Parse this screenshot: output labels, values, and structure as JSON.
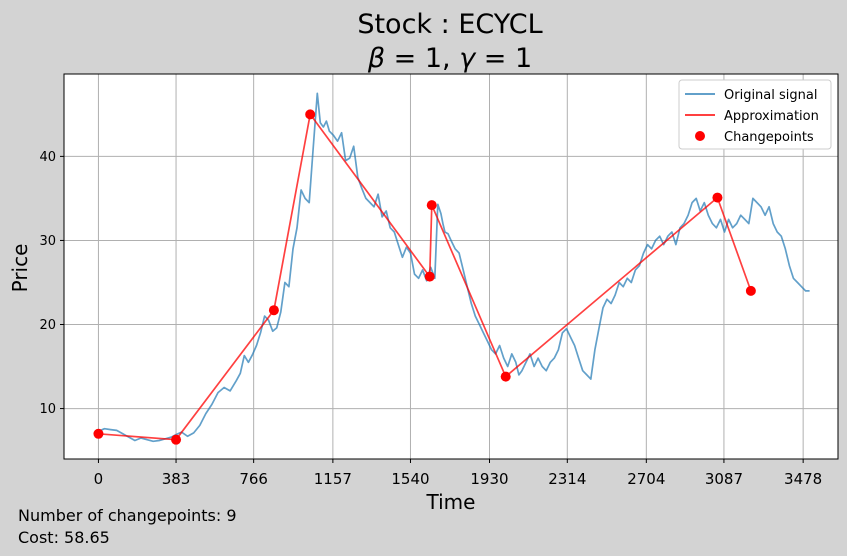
{
  "chart_data": {
    "type": "line",
    "title": "Stock : ECYCL",
    "subtitle_parts": {
      "beta_symbol": "β",
      "beta_rest": " = 1, ",
      "gamma_symbol": "γ",
      "gamma_rest": " = 1"
    },
    "xlabel": "Time",
    "ylabel": "Price",
    "xlim": [
      -170,
      3650
    ],
    "ylim": [
      4,
      49.8
    ],
    "x_ticks": [
      0,
      383,
      766,
      1157,
      1540,
      1930,
      2314,
      2704,
      3087,
      3478
    ],
    "y_ticks": [
      10,
      20,
      30,
      40
    ],
    "grid": true,
    "legend_position": "top-right",
    "series": [
      {
        "name": "Original signal",
        "kind": "line",
        "color": "#1f77b4",
        "x": [
          0,
          30,
          60,
          90,
          120,
          150,
          180,
          210,
          240,
          270,
          300,
          330,
          360,
          383,
          410,
          440,
          470,
          500,
          530,
          560,
          590,
          620,
          650,
          680,
          700,
          720,
          740,
          760,
          780,
          800,
          820,
          840,
          860,
          880,
          900,
          920,
          940,
          960,
          980,
          1000,
          1020,
          1040,
          1060,
          1080,
          1095,
          1110,
          1125,
          1140,
          1160,
          1180,
          1200,
          1220,
          1240,
          1260,
          1280,
          1300,
          1320,
          1340,
          1360,
          1380,
          1400,
          1420,
          1440,
          1460,
          1480,
          1500,
          1520,
          1540,
          1560,
          1580,
          1600,
          1620,
          1640,
          1660,
          1675,
          1690,
          1700,
          1710,
          1725,
          1740,
          1760,
          1780,
          1800,
          1820,
          1840,
          1860,
          1880,
          1900,
          1920,
          1940,
          1960,
          1980,
          2000,
          2020,
          2040,
          2060,
          2075,
          2090,
          2110,
          2130,
          2150,
          2170,
          2190,
          2210,
          2230,
          2250,
          2270,
          2290,
          2310,
          2330,
          2350,
          2370,
          2390,
          2410,
          2430,
          2450,
          2470,
          2490,
          2510,
          2530,
          2550,
          2570,
          2590,
          2610,
          2630,
          2650,
          2670,
          2690,
          2710,
          2730,
          2750,
          2770,
          2790,
          2810,
          2830,
          2850,
          2870,
          2890,
          2910,
          2930,
          2950,
          2970,
          2990,
          3010,
          3030,
          3050,
          3070,
          3090,
          3110,
          3130,
          3150,
          3170,
          3190,
          3210,
          3230,
          3250,
          3270,
          3290,
          3310,
          3330,
          3350,
          3370,
          3390,
          3410,
          3430,
          3450,
          3470,
          3490,
          3510
        ],
        "y": [
          7.3,
          7.6,
          7.5,
          7.4,
          7.0,
          6.6,
          6.2,
          6.5,
          6.3,
          6.1,
          6.2,
          6.4,
          6.6,
          6.9,
          7.2,
          6.7,
          7.1,
          8.0,
          9.4,
          10.5,
          11.9,
          12.5,
          12.1,
          13.3,
          14.2,
          16.3,
          15.5,
          16.4,
          17.5,
          19.0,
          21.0,
          20.5,
          19.2,
          19.6,
          21.5,
          25.0,
          24.5,
          29.0,
          31.5,
          36.0,
          35.0,
          34.5,
          41.0,
          47.5,
          44.0,
          43.5,
          44.2,
          43.0,
          42.5,
          41.8,
          42.8,
          39.5,
          39.8,
          41.2,
          37.5,
          36.2,
          35.0,
          34.5,
          34.0,
          35.5,
          32.8,
          33.5,
          31.5,
          31.0,
          29.5,
          28.0,
          29.2,
          28.5,
          26.0,
          25.5,
          26.5,
          25.2,
          26.8,
          25.5,
          34.3,
          33.2,
          32.0,
          31.0,
          30.8,
          30.0,
          29.0,
          28.5,
          26.5,
          24.5,
          22.5,
          21.0,
          20.0,
          19.0,
          18.0,
          17.0,
          16.5,
          17.5,
          16.0,
          15.0,
          16.5,
          15.5,
          14.0,
          14.5,
          15.5,
          16.5,
          15.0,
          16.0,
          15.0,
          14.5,
          15.5,
          16.0,
          17.0,
          19.0,
          19.5,
          18.5,
          17.5,
          16.0,
          14.5,
          14.0,
          13.5,
          17.0,
          19.5,
          22.0,
          23.0,
          22.5,
          23.5,
          25.0,
          24.5,
          25.5,
          25.0,
          26.5,
          27.0,
          28.5,
          29.5,
          29.0,
          30.0,
          30.5,
          29.5,
          30.5,
          31.0,
          29.5,
          31.5,
          32.0,
          33.0,
          34.5,
          35.0,
          33.5,
          34.5,
          33.0,
          32.0,
          31.5,
          32.5,
          31.0,
          32.5,
          31.5,
          32.0,
          33.0,
          32.5,
          32.0,
          35.0,
          34.5,
          34.0,
          33.0,
          34.0,
          32.0,
          31.0,
          30.5,
          29.0,
          27.0,
          25.5,
          25.0,
          24.5,
          24.0,
          24.0
        ]
      },
      {
        "name": "Approximation",
        "kind": "line",
        "color": "#ff0000",
        "x": [
          0,
          383,
          866,
          1045,
          1635,
          1645,
          2010,
          3055,
          3220
        ],
        "y": [
          7.0,
          6.3,
          21.7,
          45.0,
          25.7,
          34.2,
          13.8,
          35.1,
          24.0
        ]
      },
      {
        "name": "Changepoints",
        "kind": "scatter",
        "color": "#ff0000",
        "x": [
          0,
          383,
          866,
          1045,
          1635,
          1645,
          2010,
          3055,
          3220
        ],
        "y": [
          7.0,
          6.3,
          21.7,
          45.0,
          25.7,
          34.2,
          13.8,
          35.1,
          24.0
        ]
      }
    ]
  },
  "footer": {
    "changepoints_label": "Number of changepoints: 9",
    "cost_label": "Cost: 58.65"
  }
}
